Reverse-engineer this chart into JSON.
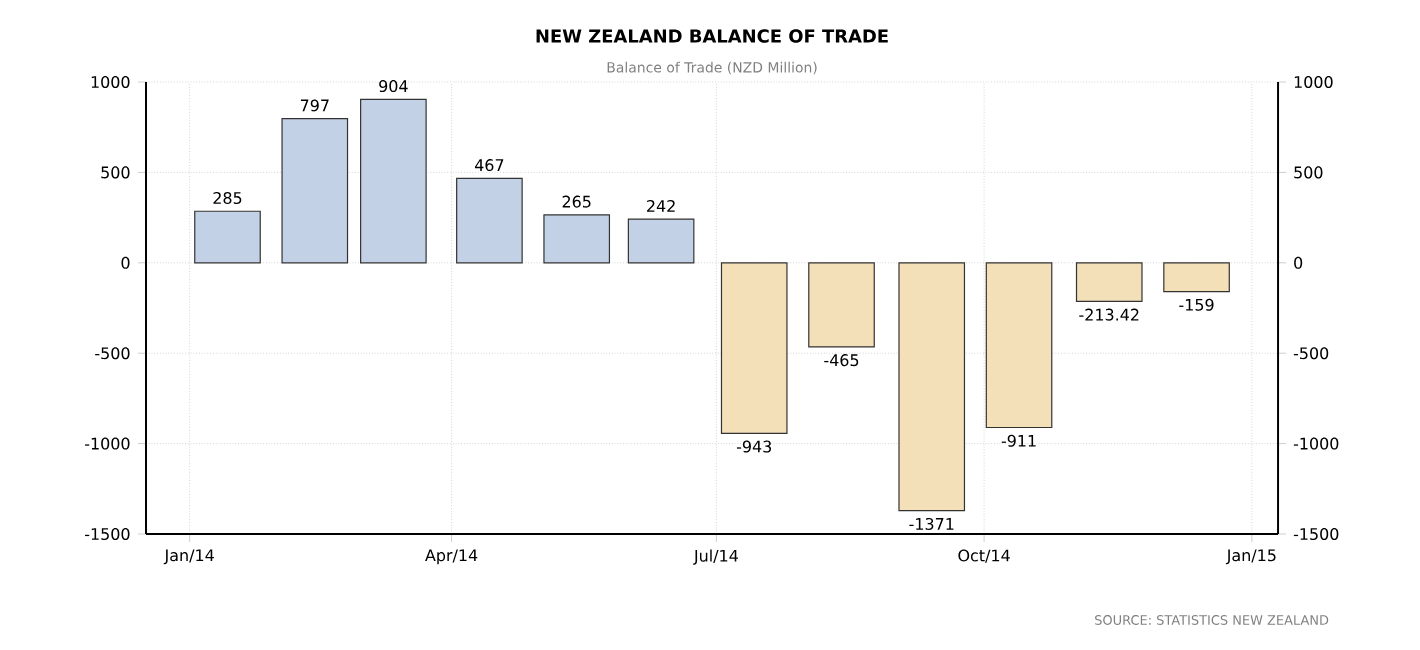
{
  "chart_data": {
    "type": "bar",
    "title": "NEW ZEALAND BALANCE OF TRADE",
    "subtitle": "Balance of Trade (NZD Million)",
    "x": [
      "2014-01-14",
      "2014-02-13",
      "2014-03-12",
      "2014-04-14",
      "2014-05-14",
      "2014-06-12",
      "2014-07-14",
      "2014-08-13",
      "2014-09-13",
      "2014-10-13",
      "2014-11-13",
      "2014-12-13"
    ],
    "values": [
      285,
      797,
      904,
      467,
      265,
      242,
      -943,
      -465,
      -1371,
      -911,
      -213.42,
      -159
    ],
    "colors": [
      "#c3d1e6",
      "#c3d1e6",
      "#c3d1e6",
      "#c3d1e6",
      "#c3d1e6",
      "#c3d1e6",
      "#f3dfb8",
      "#f3dfb8",
      "#f3dfb8",
      "#f3dfb8",
      "#f3dfb8",
      "#f3dfb8"
    ],
    "xlim": [
      "2013-12-17",
      "2015-01-10"
    ],
    "xticks": [
      {
        "value": "2014-01-01",
        "label": "Jan/14"
      },
      {
        "value": "2014-04-01",
        "label": "Apr/14"
      },
      {
        "value": "2014-07-01",
        "label": "Jul/14"
      },
      {
        "value": "2014-10-01",
        "label": "Oct/14"
      },
      {
        "value": "2015-01-01",
        "label": "Jan/15"
      }
    ],
    "ylim": [
      -1500,
      1000
    ],
    "yticks": [
      -1500,
      -1000,
      -500,
      0,
      500,
      1000
    ],
    "y2lim": [
      -1500,
      1000
    ],
    "y2ticks": [
      -1500,
      -1000,
      -500,
      0,
      500,
      1000
    ],
    "grid": true,
    "data_labels": true,
    "annotations": [
      "SOURCE: STATISTICS NEW ZEALAND"
    ]
  }
}
